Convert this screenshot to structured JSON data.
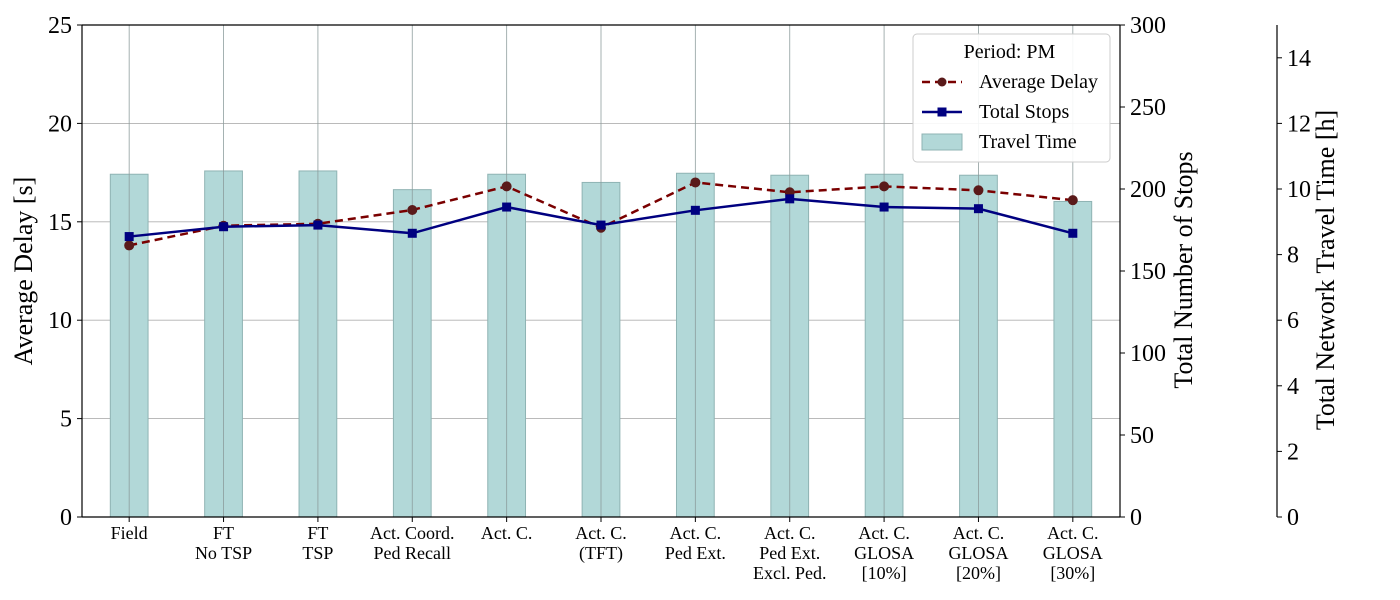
{
  "chart_data": {
    "type": "bar+line",
    "categories": [
      [
        "Field"
      ],
      [
        "FT",
        "No TSP"
      ],
      [
        "FT",
        "TSP"
      ],
      [
        "Act. Coord.",
        "Ped Recall"
      ],
      [
        "Act. C."
      ],
      [
        "Act. C.",
        "(TFT)"
      ],
      [
        "Act. C.",
        "Ped Ext."
      ],
      [
        "Act. C.",
        "Ped Ext.",
        "Excl. Ped."
      ],
      [
        "Act. C.",
        "GLOSA",
        "[10%]"
      ],
      [
        "Act. C.",
        "GLOSA",
        "[20%]"
      ],
      [
        "Act. C.",
        "GLOSA",
        "[30%]"
      ]
    ],
    "axes": {
      "left": {
        "label": "Average Delay [s]",
        "range": [
          0,
          25
        ],
        "ticks": [
          0,
          5,
          10,
          15,
          20,
          25
        ]
      },
      "right": {
        "label": "Total Number of Stops",
        "range": [
          0,
          300
        ],
        "ticks": [
          0,
          50,
          100,
          150,
          200,
          250,
          300
        ]
      },
      "far_right": {
        "label": "Total Network Travel Time [h]",
        "range": [
          0,
          15
        ],
        "ticks": [
          0,
          2,
          4,
          6,
          8,
          10,
          12,
          14
        ]
      }
    },
    "grid": true,
    "legend": {
      "title": "Period: PM",
      "placement": "top-right"
    },
    "series": [
      {
        "name": "Average Delay",
        "kind": "line",
        "axis": "left",
        "style": "dashed",
        "marker": "circle",
        "color": "#7a0000",
        "marker_color": "#5a1a1a",
        "values": [
          13.8,
          14.8,
          14.9,
          15.6,
          16.8,
          14.7,
          17.0,
          16.5,
          16.8,
          16.6,
          16.1
        ]
      },
      {
        "name": "Total Stops",
        "kind": "line",
        "axis": "right",
        "style": "solid",
        "marker": "square",
        "color": "#000080",
        "values": [
          171,
          177,
          178,
          173,
          189,
          178,
          187,
          194,
          189,
          188,
          173
        ]
      },
      {
        "name": "Travel Time",
        "kind": "bar",
        "axis": "far_right",
        "color": "#b2d8d8",
        "edge_color": "#8fb3b3",
        "values": [
          10.45,
          10.55,
          10.55,
          9.98,
          10.45,
          10.2,
          10.48,
          10.42,
          10.45,
          10.42,
          9.62
        ]
      }
    ]
  }
}
